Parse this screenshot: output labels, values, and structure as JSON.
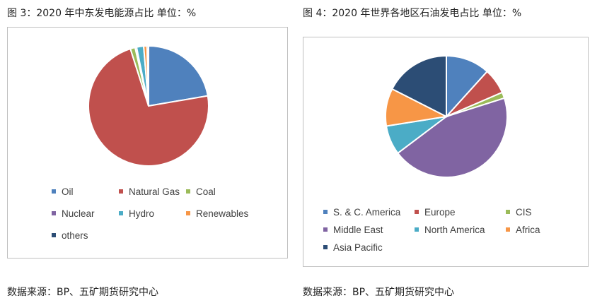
{
  "fig3": {
    "title": "图 3：2020 年中东发电能源占比  单位：%",
    "source": "数据来源：BP、五矿期货研究中心"
  },
  "fig4": {
    "title": "图 4：2020 年世界各地区石油发电占比  单位：%",
    "source": "数据来源：BP、五矿期货研究中心"
  },
  "chart_data": [
    {
      "type": "pie",
      "title": "",
      "categories": [
        "Oil",
        "Natural Gas",
        "Coal",
        "Nuclear",
        "Hydro",
        "Renewables",
        "others"
      ],
      "values": [
        22.3,
        72.8,
        1.3,
        0.4,
        1.9,
        0.9,
        0.4
      ],
      "colors": [
        "#4F81BD",
        "#C0504D",
        "#9BBB59",
        "#8064A2",
        "#4BACC6",
        "#F79646",
        "#2C4D75"
      ],
      "legend_position": "bottom"
    },
    {
      "type": "pie",
      "title": "",
      "categories": [
        "S. & C. America",
        "Europe",
        "CIS",
        "Middle East",
        "North America",
        "Africa",
        "Asia Pacific"
      ],
      "values": [
        11.7,
        6.8,
        1.6,
        44.6,
        7.8,
        10.0,
        17.5
      ],
      "colors": [
        "#4F81BD",
        "#C0504D",
        "#9BBB59",
        "#8064A2",
        "#4BACC6",
        "#F79646",
        "#2C4D75"
      ],
      "legend_position": "bottom"
    }
  ]
}
